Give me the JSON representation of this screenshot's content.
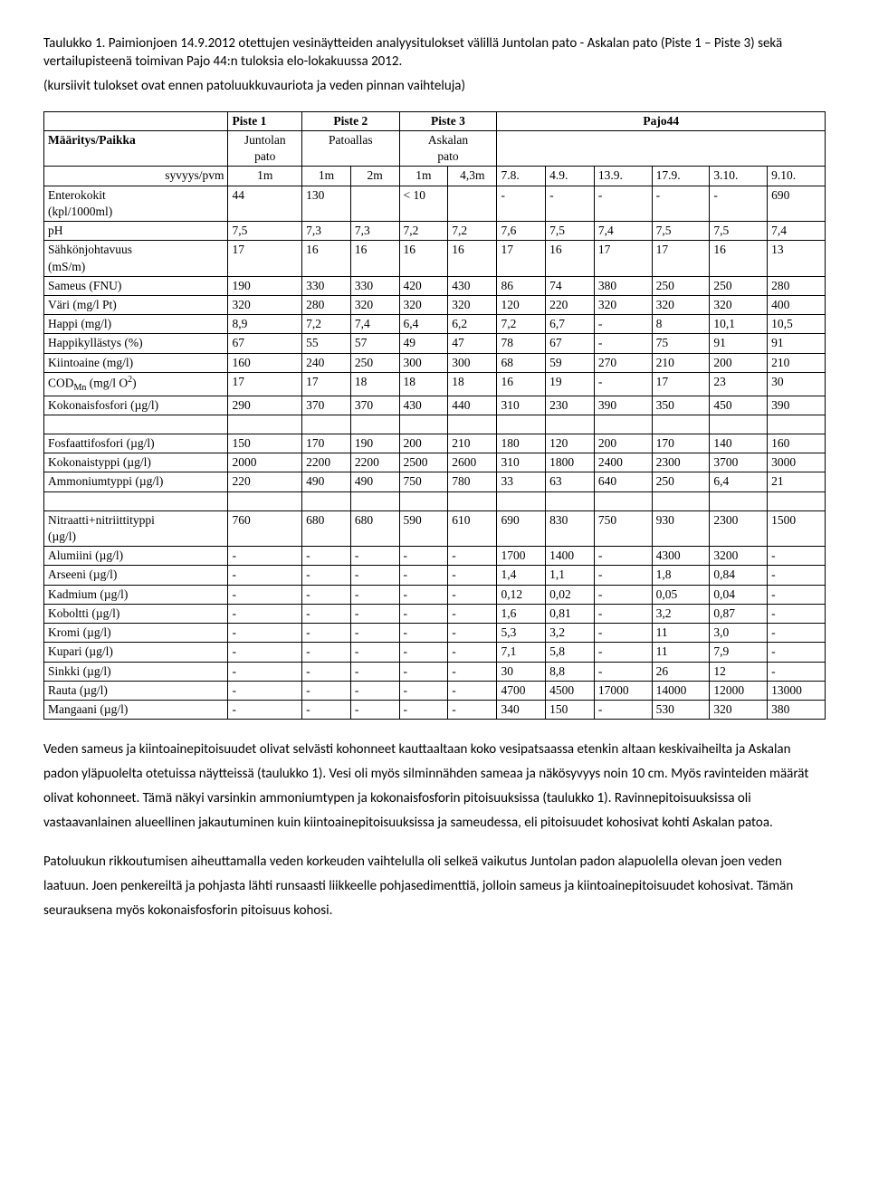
{
  "caption": "Taulukko 1. Paimionjoen 14.9.2012 otettujen vesinäytteiden analyysitulokset välillä Juntolan pato - Askalan pato (Piste 1 – Piste 3) sekä vertailupisteenä toimivan Pajo 44:n tuloksia elo-lokakuussa 2012.",
  "subcaption": "(kursiivit tulokset ovat ennen patoluukkuvauriota ja veden pinnan vaihteluja)",
  "header": {
    "blank": "",
    "piste1": "Piste 1",
    "piste2": "Piste 2",
    "piste3": "Piste 3",
    "pajo44": "Pajo44",
    "maaritys": "Määritys/Paikka",
    "juntolan": "Juntolan pato",
    "patoallas": "Patoallas",
    "askalan": "Askalan pato",
    "syvyys": "syvyys/pvm",
    "d1m_a": "1m",
    "d1m_b": "1m",
    "d2m": "2m",
    "d1m_c": "1m",
    "d43m": "4,3m",
    "c78": "7.8.",
    "c49": "4.9.",
    "c139": "13.9.",
    "c179": "17.9.",
    "c310": "3.10.",
    "c910": "9.10."
  },
  "rows1": [
    {
      "label": "Enterokokit (kpl/1000ml)",
      "v": [
        "44",
        "130",
        "",
        "< 10",
        "",
        "-",
        "-",
        "-",
        "-",
        "-",
        "690"
      ]
    },
    {
      "label": "pH",
      "v": [
        "7,5",
        "7,3",
        "7,3",
        "7,2",
        "7,2",
        "7,6",
        "7,5",
        "7,4",
        "7,5",
        "7,5",
        "7,4"
      ]
    },
    {
      "label": "Sähkönjohtavuus (mS/m)",
      "v": [
        "17",
        "16",
        "16",
        "16",
        "16",
        "17",
        "16",
        "17",
        "17",
        "16",
        "13"
      ]
    },
    {
      "label": "Sameus (FNU)",
      "v": [
        "190",
        "330",
        "330",
        "420",
        "430",
        "86",
        "74",
        "380",
        "250",
        "250",
        "280"
      ]
    },
    {
      "label": "Väri (mg/l Pt)",
      "v": [
        "320",
        "280",
        "320",
        "320",
        "320",
        "120",
        "220",
        "320",
        "320",
        "320",
        "400"
      ]
    },
    {
      "label": "Happi (mg/l)",
      "v": [
        "8,9",
        "7,2",
        "7,4",
        "6,4",
        "6,2",
        "7,2",
        "6,7",
        "-",
        "8",
        "10,1",
        "10,5"
      ]
    },
    {
      "label": "Happikyllästys (%)",
      "v": [
        "67",
        "55",
        "57",
        "49",
        "47",
        "78",
        "67",
        "-",
        "75",
        "91",
        "91"
      ]
    },
    {
      "label": "Kiintoaine (mg/l)",
      "v": [
        "160",
        "240",
        "250",
        "300",
        "300",
        "68",
        "59",
        "270",
        "210",
        "200",
        "210"
      ]
    },
    {
      "label": "COD_Mn (mg/l O^2)",
      "v": [
        "17",
        "17",
        "18",
        "18",
        "18",
        "16",
        "19",
        "-",
        "17",
        "23",
        "30"
      ]
    },
    {
      "label": "Kokonaisfosfori (µg/l)",
      "v": [
        "290",
        "370",
        "370",
        "430",
        "440",
        "310",
        "230",
        "390",
        "350",
        "450",
        "390"
      ]
    }
  ],
  "rows2": [
    {
      "label": "Fosfaattifosfori (µg/l)",
      "v": [
        "150",
        "170",
        "190",
        "200",
        "210",
        "180",
        "120",
        "200",
        "170",
        "140",
        "160"
      ]
    },
    {
      "label": "Kokonaistyppi (µg/l)",
      "v": [
        "2000",
        "2200",
        "2200",
        "2500",
        "2600",
        "310",
        "1800",
        "2400",
        "2300",
        "3700",
        "3000"
      ]
    },
    {
      "label": "Ammoniumtyppi (µg/l)",
      "v": [
        "220",
        "490",
        "490",
        "750",
        "780",
        "33",
        "63",
        "640",
        "250",
        "6,4",
        "21"
      ]
    }
  ],
  "rows3": [
    {
      "label": "Nitraatti+nitriittityppi (µg/l)",
      "v": [
        "760",
        "680",
        "680",
        "590",
        "610",
        "690",
        "830",
        "750",
        "930",
        "2300",
        "1500"
      ]
    },
    {
      "label": "Alumiini (µg/l)",
      "v": [
        "-",
        "-",
        "-",
        "-",
        "-",
        "1700",
        "1400",
        "-",
        "4300",
        "3200",
        "-"
      ]
    },
    {
      "label": "Arseeni (µg/l)",
      "v": [
        "-",
        "-",
        "-",
        "-",
        "-",
        "1,4",
        "1,1",
        "-",
        "1,8",
        "0,84",
        "-"
      ]
    },
    {
      "label": "Kadmium (µg/l)",
      "v": [
        "-",
        "-",
        "-",
        "-",
        "-",
        "0,12",
        "0,02",
        "-",
        "0,05",
        "0,04",
        "-"
      ]
    },
    {
      "label": "Koboltti (µg/l)",
      "v": [
        "-",
        "-",
        "-",
        "-",
        "-",
        "1,6",
        "0,81",
        "-",
        "3,2",
        "0,87",
        "-"
      ]
    },
    {
      "label": "Kromi (µg/l)",
      "v": [
        "-",
        "-",
        "-",
        "-",
        "-",
        "5,3",
        "3,2",
        "-",
        "11",
        "3,0",
        "-"
      ]
    },
    {
      "label": "Kupari (µg/l)",
      "v": [
        "-",
        "-",
        "-",
        "-",
        "-",
        "7,1",
        "5,8",
        "-",
        "11",
        "7,9",
        "-"
      ]
    },
    {
      "label": "Sinkki (µg/l)",
      "v": [
        "-",
        "-",
        "-",
        "-",
        "-",
        "30",
        "8,8",
        "-",
        "26",
        "12",
        "-"
      ]
    },
    {
      "label": "Rauta (µg/l)",
      "v": [
        "-",
        "-",
        "-",
        "-",
        "-",
        "4700",
        "4500",
        "17000",
        "14000",
        "12000",
        "13000"
      ]
    },
    {
      "label": "Mangaani (µg/l)",
      "v": [
        "-",
        "-",
        "-",
        "-",
        "-",
        "340",
        "150",
        "-",
        "530",
        "320",
        "380"
      ]
    }
  ],
  "para1": "Veden sameus ja kiintoainepitoisuudet olivat selvästi kohonneet kauttaaltaan koko vesipatsaassa etenkin altaan keskivaiheilta ja Askalan padon yläpuolelta otetuissa näytteissä (taulukko 1). Vesi oli myös silminnähden sameaa ja näkösyvyys noin 10 cm. Myös ravinteiden määrät olivat kohonneet. Tämä näkyi varsinkin ammoniumtypen ja kokonaisfosforin pitoisuuksissa (taulukko 1). Ravinnepitoisuuksissa oli vastaavanlainen alueellinen jakautuminen kuin kiintoainepitoisuuksissa ja sameudessa, eli pitoisuudet kohosivat kohti Askalan patoa.",
  "para2": "Patoluukun rikkoutumisen aiheuttamalla veden korkeuden vaihtelulla oli selkeä vaikutus Juntolan padon alapuolella olevan joen veden laatuun. Joen penkereiltä ja pohjasta lähti runsaasti liikkeelle pohjasedimenttiä, jolloin sameus ja kiintoainepitoisuudet kohosivat. Tämän seurauksena myös kokonaisfosforin pitoisuus kohosi."
}
